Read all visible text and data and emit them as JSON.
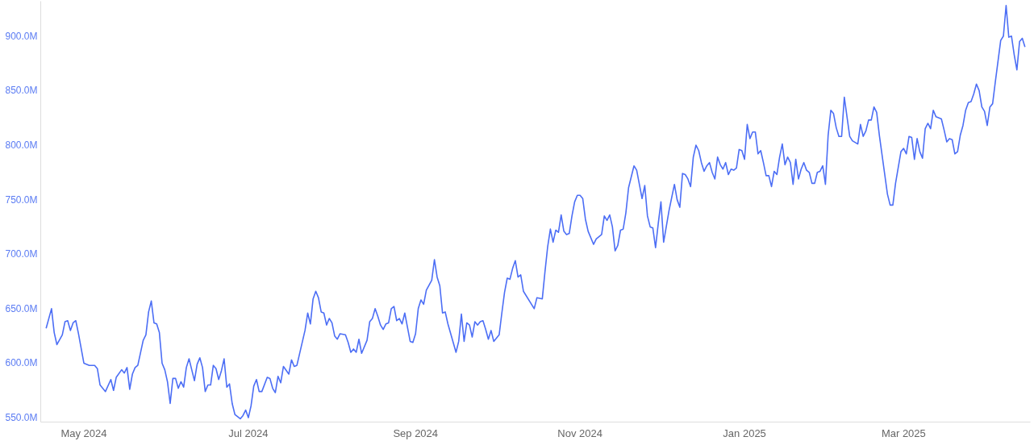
{
  "chart_data": {
    "type": "line",
    "x": [
      "2024-04-17",
      "2024-04-19",
      "2024-04-20",
      "2024-04-21",
      "2024-04-23",
      "2024-04-24",
      "2024-04-25",
      "2024-04-26",
      "2024-04-27",
      "2024-04-28",
      "2024-04-29",
      "2024-05-01",
      "2024-05-03",
      "2024-05-05",
      "2024-05-06",
      "2024-05-07",
      "2024-05-09",
      "2024-05-11",
      "2024-05-12",
      "2024-05-13",
      "2024-05-15",
      "2024-05-16",
      "2024-05-17",
      "2024-05-18",
      "2024-05-19",
      "2024-05-20",
      "2024-05-21",
      "2024-05-23",
      "2024-05-24",
      "2024-05-25",
      "2024-05-26",
      "2024-05-27",
      "2024-05-28",
      "2024-05-29",
      "2024-05-30",
      "2024-05-31",
      "2024-06-01",
      "2024-06-02",
      "2024-06-03",
      "2024-06-04",
      "2024-06-05",
      "2024-06-06",
      "2024-06-07",
      "2024-06-08",
      "2024-06-09",
      "2024-06-10",
      "2024-06-11",
      "2024-06-12",
      "2024-06-13",
      "2024-06-14",
      "2024-06-15",
      "2024-06-16",
      "2024-06-17",
      "2024-06-18",
      "2024-06-19",
      "2024-06-20",
      "2024-06-21",
      "2024-06-22",
      "2024-06-23",
      "2024-06-24",
      "2024-06-25",
      "2024-06-26",
      "2024-06-28",
      "2024-06-29",
      "2024-06-30",
      "2024-07-01",
      "2024-07-02",
      "2024-07-03",
      "2024-07-04",
      "2024-07-05",
      "2024-07-06",
      "2024-07-08",
      "2024-07-09",
      "2024-07-10",
      "2024-07-11",
      "2024-07-12",
      "2024-07-13",
      "2024-07-14",
      "2024-07-16",
      "2024-07-17",
      "2024-07-18",
      "2024-07-19",
      "2024-07-22",
      "2024-07-23",
      "2024-07-24",
      "2024-07-25",
      "2024-07-26",
      "2024-07-27",
      "2024-07-28",
      "2024-07-29",
      "2024-07-30",
      "2024-07-31",
      "2024-08-01",
      "2024-08-02",
      "2024-08-03",
      "2024-08-04",
      "2024-08-06",
      "2024-08-07",
      "2024-08-08",
      "2024-08-09",
      "2024-08-10",
      "2024-08-11",
      "2024-08-12",
      "2024-08-14",
      "2024-08-15",
      "2024-08-16",
      "2024-08-17",
      "2024-08-18",
      "2024-08-19",
      "2024-08-20",
      "2024-08-21",
      "2024-08-22",
      "2024-08-23",
      "2024-08-24",
      "2024-08-25",
      "2024-08-26",
      "2024-08-27",
      "2024-08-28",
      "2024-08-29",
      "2024-08-30",
      "2024-08-31",
      "2024-09-01",
      "2024-09-02",
      "2024-09-03",
      "2024-09-04",
      "2024-09-05",
      "2024-09-07",
      "2024-09-08",
      "2024-09-09",
      "2024-09-10",
      "2024-09-11",
      "2024-09-12",
      "2024-09-13",
      "2024-09-16",
      "2024-09-17",
      "2024-09-18",
      "2024-09-19",
      "2024-09-20",
      "2024-09-21",
      "2024-09-22",
      "2024-09-23",
      "2024-09-24",
      "2024-09-25",
      "2024-09-26",
      "2024-09-27",
      "2024-09-28",
      "2024-09-29",
      "2024-09-30",
      "2024-10-02",
      "2024-10-03",
      "2024-10-04",
      "2024-10-05",
      "2024-10-06",
      "2024-10-07",
      "2024-10-08",
      "2024-10-09",
      "2024-10-10",
      "2024-10-11",
      "2024-10-15",
      "2024-10-16",
      "2024-10-18",
      "2024-10-19",
      "2024-10-20",
      "2024-10-21",
      "2024-10-22",
      "2024-10-23",
      "2024-10-24",
      "2024-10-25",
      "2024-10-26",
      "2024-10-27",
      "2024-10-28",
      "2024-10-29",
      "2024-10-30",
      "2024-10-31",
      "2024-11-01",
      "2024-11-02",
      "2024-11-03",
      "2024-11-04",
      "2024-11-06",
      "2024-11-07",
      "2024-11-09",
      "2024-11-10",
      "2024-11-11",
      "2024-11-12",
      "2024-11-13",
      "2024-11-14",
      "2024-11-15",
      "2024-11-16",
      "2024-11-17",
      "2024-11-18",
      "2024-11-19",
      "2024-11-21",
      "2024-11-22",
      "2024-11-23",
      "2024-11-24",
      "2024-11-25",
      "2024-11-26",
      "2024-11-27",
      "2024-11-28",
      "2024-11-29",
      "2024-11-30",
      "2024-12-01",
      "2024-12-02",
      "2024-12-04",
      "2024-12-06",
      "2024-12-07",
      "2024-12-08",
      "2024-12-09",
      "2024-12-10",
      "2024-12-11",
      "2024-12-12",
      "2024-12-13",
      "2024-12-14",
      "2024-12-15",
      "2024-12-16",
      "2024-12-17",
      "2024-12-18",
      "2024-12-19",
      "2024-12-20",
      "2024-12-21",
      "2024-12-22",
      "2024-12-23",
      "2024-12-24",
      "2024-12-25",
      "2024-12-26",
      "2024-12-27",
      "2024-12-28",
      "2024-12-29",
      "2024-12-30",
      "2024-12-31",
      "2025-01-01",
      "2025-01-02",
      "2025-01-03",
      "2025-01-04",
      "2025-01-05",
      "2025-01-06",
      "2025-01-07",
      "2025-01-08",
      "2025-01-09",
      "2025-01-10",
      "2025-01-11",
      "2025-01-12",
      "2025-01-13",
      "2025-01-14",
      "2025-01-15",
      "2025-01-16",
      "2025-01-17",
      "2025-01-18",
      "2025-01-19",
      "2025-01-20",
      "2025-01-21",
      "2025-01-22",
      "2025-01-23",
      "2025-01-24",
      "2025-01-25",
      "2025-01-26",
      "2025-01-27",
      "2025-01-28",
      "2025-01-29",
      "2025-01-30",
      "2025-01-31",
      "2025-02-01",
      "2025-02-02",
      "2025-02-03",
      "2025-02-04",
      "2025-02-05",
      "2025-02-06",
      "2025-02-07",
      "2025-02-08",
      "2025-02-09",
      "2025-02-10",
      "2025-02-12",
      "2025-02-13",
      "2025-02-14",
      "2025-02-15",
      "2025-02-16",
      "2025-02-17",
      "2025-02-18",
      "2025-02-19",
      "2025-02-20",
      "2025-02-23",
      "2025-02-24",
      "2025-02-25",
      "2025-02-26",
      "2025-02-28",
      "2025-03-01",
      "2025-03-02",
      "2025-03-03",
      "2025-03-04",
      "2025-03-05",
      "2025-03-06",
      "2025-03-07",
      "2025-03-08",
      "2025-03-09",
      "2025-03-10",
      "2025-03-11",
      "2025-03-12",
      "2025-03-13",
      "2025-03-15",
      "2025-03-16",
      "2025-03-17",
      "2025-03-18",
      "2025-03-19",
      "2025-03-20",
      "2025-03-21",
      "2025-03-22",
      "2025-03-23",
      "2025-03-24",
      "2025-03-25",
      "2025-03-26",
      "2025-03-27",
      "2025-03-28",
      "2025-03-29",
      "2025-03-30",
      "2025-03-31",
      "2025-04-01",
      "2025-04-02",
      "2025-04-03",
      "2025-04-04",
      "2025-04-06",
      "2025-04-07",
      "2025-04-08",
      "2025-04-09",
      "2025-04-10",
      "2025-04-11",
      "2025-04-12",
      "2025-04-13",
      "2025-04-14",
      "2025-04-15"
    ],
    "series": [
      {
        "color": "#4c6ef5",
        "values": [
          632,
          650,
          628,
          617,
          626,
          638,
          639,
          630,
          637,
          639,
          627,
          600,
          598,
          598,
          595,
          580,
          574,
          585,
          575,
          587,
          594,
          591,
          596,
          576,
          590,
          596,
          598,
          621,
          626,
          647,
          657,
          637,
          636,
          628,
          600,
          594,
          583,
          563,
          586,
          586,
          577,
          583,
          578,
          596,
          604,
          594,
          584,
          599,
          605,
          596,
          574,
          580,
          580,
          598,
          595,
          585,
          593,
          604,
          578,
          581,
          563,
          553,
          549,
          552,
          557,
          550,
          561,
          579,
          585,
          574,
          574,
          587,
          586,
          577,
          573,
          588,
          582,
          597,
          590,
          603,
          597,
          598,
          630,
          646,
          636,
          659,
          666,
          660,
          647,
          646,
          635,
          641,
          637,
          625,
          622,
          627,
          626,
          619,
          610,
          613,
          610,
          622,
          609,
          621,
          638,
          641,
          650,
          643,
          635,
          631,
          636,
          637,
          650,
          652,
          639,
          641,
          636,
          646,
          633,
          620,
          619,
          627,
          650,
          658,
          654,
          667,
          676,
          695,
          679,
          671,
          646,
          647,
          636,
          610,
          620,
          645,
          620,
          637,
          635,
          624,
          638,
          635,
          638,
          639,
          631,
          622,
          630,
          620,
          626,
          646,
          665,
          678,
          677,
          687,
          694,
          679,
          681,
          666,
          650,
          660,
          659,
          684,
          707,
          723,
          711,
          722,
          720,
          736,
          721,
          718,
          719,
          735,
          748,
          754,
          754,
          751,
          732,
          721,
          709,
          714,
          718,
          735,
          731,
          736,
          725,
          703,
          708,
          722,
          723,
          738,
          761,
          781,
          777,
          764,
          751,
          763,
          735,
          725,
          724,
          706,
          728,
          748,
          711,
          740,
          764,
          750,
          743,
          774,
          773,
          769,
          762,
          789,
          800,
          795,
          784,
          776,
          781,
          784,
          775,
          769,
          789,
          782,
          778,
          784,
          773,
          778,
          777,
          779,
          796,
          795,
          787,
          819,
          806,
          812,
          812,
          792,
          795,
          784,
          772,
          772,
          762,
          776,
          773,
          789,
          801,
          782,
          789,
          784,
          764,
          787,
          769,
          778,
          784,
          777,
          775,
          765,
          765,
          775,
          776,
          781,
          764,
          809,
          832,
          829,
          816,
          808,
          808,
          844,
          826,
          808,
          804,
          801,
          819,
          808,
          813,
          823,
          823,
          835,
          830,
          809,
          755,
          745,
          745,
          765,
          794,
          797,
          792,
          808,
          807,
          787,
          806,
          794,
          788,
          815,
          820,
          815,
          832,
          826,
          824,
          814,
          803,
          806,
          805,
          792,
          794,
          809,
          818,
          832,
          839,
          840,
          847,
          856,
          850,
          835,
          831,
          818,
          835,
          838,
          858,
          896,
          900,
          928,
          899,
          900,
          883,
          869,
          895,
          898,
          890
        ]
      }
    ],
    "xlim": [
      "2024-04-15",
      "2025-04-17"
    ],
    "ylim": [
      546,
      932
    ],
    "xticks": [
      {
        "value": "2024-05-01",
        "label": "May 2024"
      },
      {
        "value": "2024-07-01",
        "label": "Jul 2024"
      },
      {
        "value": "2024-09-01",
        "label": "Sep 2024"
      },
      {
        "value": "2024-11-01",
        "label": "Nov 2024"
      },
      {
        "value": "2025-01-01",
        "label": "Jan 2025"
      },
      {
        "value": "2025-03-01",
        "label": "Mar 2025"
      }
    ],
    "yticks": [
      {
        "value": 550,
        "label": "550.0M"
      },
      {
        "value": 600,
        "label": "600.0M"
      },
      {
        "value": 650,
        "label": "650.0M"
      },
      {
        "value": 700,
        "label": "700.0M"
      },
      {
        "value": 750,
        "label": "750.0M"
      },
      {
        "value": 800,
        "label": "800.0M"
      },
      {
        "value": 850,
        "label": "850.0M"
      },
      {
        "value": 900,
        "label": "900.0M"
      }
    ]
  }
}
